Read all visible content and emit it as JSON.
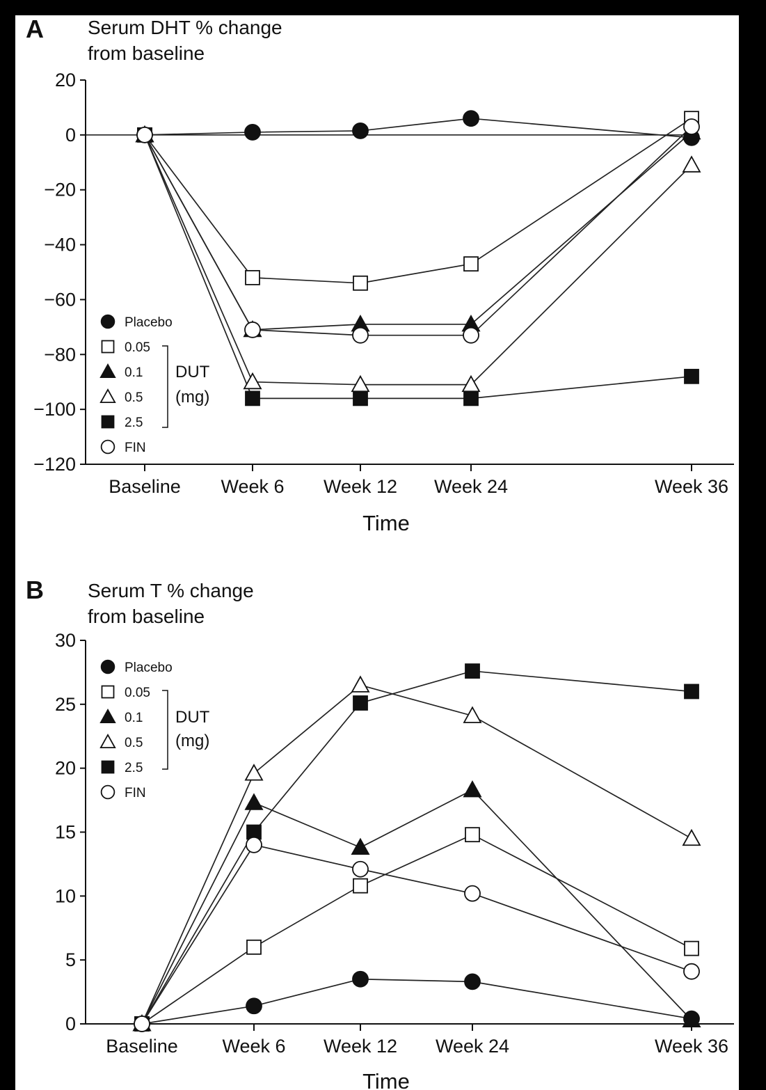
{
  "colors": {
    "ink": "#111111",
    "background": "#ffffff",
    "frame": "#000000"
  },
  "chart_data": [
    {
      "panel": "A",
      "type": "line",
      "title": "Serum DHT % change",
      "subtitle": "from baseline",
      "xlabel": "Time",
      "ylabel": "",
      "categories": [
        "Baseline",
        "Week 6",
        "Week 12",
        "Week 24",
        "Week 36"
      ],
      "x": [
        0,
        6,
        12,
        24,
        36
      ],
      "ylim": [
        -120,
        20
      ],
      "yticks": [
        "20",
        "0",
        "−20",
        "−40",
        "−60",
        "−80",
        "−100",
        "−120"
      ],
      "ytick_values": [
        20,
        0,
        -20,
        -40,
        -60,
        -80,
        -100,
        -120
      ],
      "zero_line": true,
      "grid": false,
      "legend_position": "lower-left",
      "legend_group_label": "DUT (mg)",
      "legend_group_line1": "DUT",
      "legend_group_line2": "(mg)",
      "series": [
        {
          "name": "Placebo",
          "marker": "filled-circle",
          "values": [
            0,
            1,
            1.5,
            6,
            -1
          ]
        },
        {
          "name": "0.05",
          "marker": "open-square",
          "values": [
            0,
            -52,
            -54,
            -47,
            6
          ]
        },
        {
          "name": "0.1",
          "marker": "filled-triangle",
          "values": [
            0,
            -71,
            -69,
            -69,
            1
          ]
        },
        {
          "name": "0.5",
          "marker": "open-triangle",
          "values": [
            0,
            -90,
            -91,
            -91,
            -11
          ]
        },
        {
          "name": "2.5",
          "marker": "filled-square",
          "values": [
            0,
            -96,
            -96,
            -96,
            -88
          ]
        },
        {
          "name": "FIN",
          "marker": "open-circle",
          "values": [
            0,
            -71,
            -73,
            -73,
            3
          ]
        }
      ]
    },
    {
      "panel": "B",
      "type": "line",
      "title": "Serum T % change",
      "subtitle": "from baseline",
      "xlabel": "Time",
      "ylabel": "",
      "categories": [
        "Baseline",
        "Week 6",
        "Week 12",
        "Week 24",
        "Week 36"
      ],
      "x": [
        0,
        6,
        12,
        24,
        36
      ],
      "ylim": [
        0,
        30
      ],
      "yticks": [
        "30",
        "25",
        "20",
        "15",
        "10",
        "5",
        "0"
      ],
      "ytick_values": [
        30,
        25,
        20,
        15,
        10,
        5,
        0
      ],
      "zero_line": false,
      "grid": false,
      "legend_position": "upper-left",
      "legend_group_label": "DUT (mg)",
      "legend_group_line1": "DUT",
      "legend_group_line2": "(mg)",
      "series": [
        {
          "name": "Placebo",
          "marker": "filled-circle",
          "values": [
            0,
            1.4,
            3.5,
            3.3,
            0.4
          ]
        },
        {
          "name": "0.05",
          "marker": "open-square",
          "values": [
            0,
            6,
            10.8,
            14.8,
            5.9
          ]
        },
        {
          "name": "0.1",
          "marker": "filled-triangle",
          "values": [
            0,
            17.3,
            13.8,
            18.3,
            0.3
          ]
        },
        {
          "name": "0.5",
          "marker": "open-triangle",
          "values": [
            0,
            19.6,
            26.5,
            24.1,
            14.5
          ]
        },
        {
          "name": "2.5",
          "marker": "filled-square",
          "values": [
            0,
            15,
            25.1,
            27.6,
            26
          ]
        },
        {
          "name": "FIN",
          "marker": "open-circle",
          "values": [
            0,
            14,
            12.1,
            10.2,
            4.1
          ]
        }
      ]
    }
  ]
}
